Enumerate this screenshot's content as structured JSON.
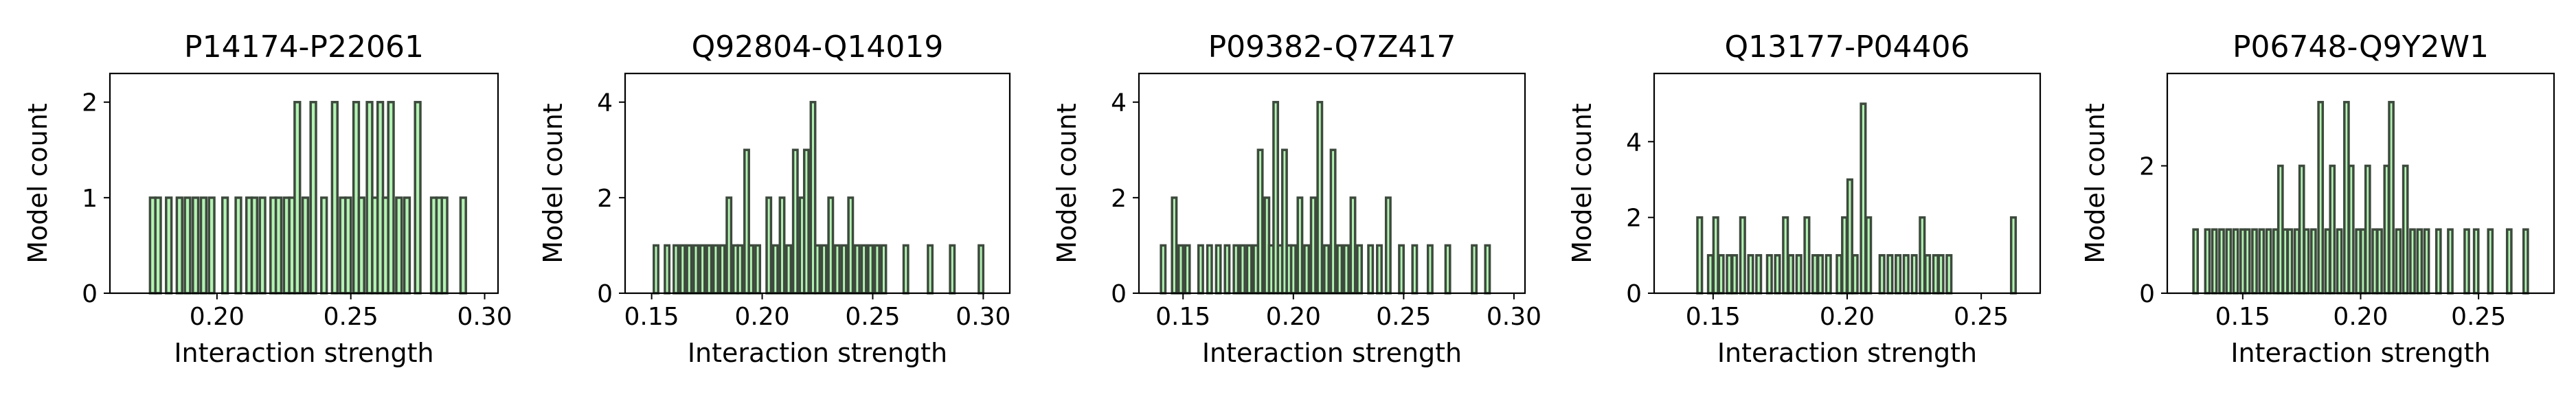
{
  "chart_data": [
    {
      "type": "histogram",
      "title": "P14174-P22061",
      "xlabel": "Interaction strength",
      "ylabel": "Model count",
      "xlim": [
        0.16,
        0.305
      ],
      "ylim": [
        0,
        2.3
      ],
      "xticks": [
        "0.20",
        "0.25",
        "0.30"
      ],
      "xtick_values": [
        0.2,
        0.25,
        0.3
      ],
      "yticks": [
        "0",
        "1",
        "2"
      ],
      "ytick_values": [
        0,
        1,
        2
      ],
      "bar_width": 0.002,
      "bars": [
        {
          "x": 0.176,
          "count": 1
        },
        {
          "x": 0.178,
          "count": 1
        },
        {
          "x": 0.182,
          "count": 1
        },
        {
          "x": 0.186,
          "count": 1
        },
        {
          "x": 0.189,
          "count": 1
        },
        {
          "x": 0.192,
          "count": 1
        },
        {
          "x": 0.195,
          "count": 1
        },
        {
          "x": 0.198,
          "count": 1
        },
        {
          "x": 0.203,
          "count": 1
        },
        {
          "x": 0.208,
          "count": 1
        },
        {
          "x": 0.212,
          "count": 1
        },
        {
          "x": 0.214,
          "count": 1
        },
        {
          "x": 0.217,
          "count": 1
        },
        {
          "x": 0.221,
          "count": 1
        },
        {
          "x": 0.223,
          "count": 1
        },
        {
          "x": 0.226,
          "count": 1
        },
        {
          "x": 0.228,
          "count": 1
        },
        {
          "x": 0.23,
          "count": 2
        },
        {
          "x": 0.233,
          "count": 1
        },
        {
          "x": 0.236,
          "count": 2
        },
        {
          "x": 0.24,
          "count": 1
        },
        {
          "x": 0.244,
          "count": 2
        },
        {
          "x": 0.247,
          "count": 1
        },
        {
          "x": 0.249,
          "count": 1
        },
        {
          "x": 0.252,
          "count": 2
        },
        {
          "x": 0.254,
          "count": 1
        },
        {
          "x": 0.257,
          "count": 2
        },
        {
          "x": 0.259,
          "count": 1
        },
        {
          "x": 0.261,
          "count": 2
        },
        {
          "x": 0.263,
          "count": 1
        },
        {
          "x": 0.265,
          "count": 2
        },
        {
          "x": 0.268,
          "count": 1
        },
        {
          "x": 0.271,
          "count": 1
        },
        {
          "x": 0.275,
          "count": 2
        },
        {
          "x": 0.281,
          "count": 1
        },
        {
          "x": 0.283,
          "count": 1
        },
        {
          "x": 0.285,
          "count": 1
        },
        {
          "x": 0.292,
          "count": 1
        }
      ]
    },
    {
      "type": "histogram",
      "title": "Q92804-Q14019",
      "xlabel": "Interaction strength",
      "ylabel": "Model count",
      "xlim": [
        0.138,
        0.312
      ],
      "ylim": [
        0,
        4.6
      ],
      "xticks": [
        "0.15",
        "0.20",
        "0.25",
        "0.30"
      ],
      "xtick_values": [
        0.15,
        0.2,
        0.25,
        0.3
      ],
      "yticks": [
        "0",
        "2",
        "4"
      ],
      "ytick_values": [
        0,
        2,
        4
      ],
      "bar_width": 0.002,
      "bars": [
        {
          "x": 0.152,
          "count": 1
        },
        {
          "x": 0.157,
          "count": 1
        },
        {
          "x": 0.161,
          "count": 1
        },
        {
          "x": 0.164,
          "count": 1
        },
        {
          "x": 0.167,
          "count": 1
        },
        {
          "x": 0.17,
          "count": 1
        },
        {
          "x": 0.173,
          "count": 1
        },
        {
          "x": 0.176,
          "count": 1
        },
        {
          "x": 0.179,
          "count": 1
        },
        {
          "x": 0.182,
          "count": 1
        },
        {
          "x": 0.185,
          "count": 2
        },
        {
          "x": 0.188,
          "count": 1
        },
        {
          "x": 0.19,
          "count": 1
        },
        {
          "x": 0.193,
          "count": 3
        },
        {
          "x": 0.195,
          "count": 1
        },
        {
          "x": 0.198,
          "count": 1
        },
        {
          "x": 0.203,
          "count": 2
        },
        {
          "x": 0.206,
          "count": 1
        },
        {
          "x": 0.209,
          "count": 2
        },
        {
          "x": 0.212,
          "count": 1
        },
        {
          "x": 0.215,
          "count": 3
        },
        {
          "x": 0.218,
          "count": 2
        },
        {
          "x": 0.22,
          "count": 3
        },
        {
          "x": 0.223,
          "count": 4
        },
        {
          "x": 0.225,
          "count": 1
        },
        {
          "x": 0.228,
          "count": 1
        },
        {
          "x": 0.231,
          "count": 2
        },
        {
          "x": 0.234,
          "count": 1
        },
        {
          "x": 0.237,
          "count": 1
        },
        {
          "x": 0.24,
          "count": 2
        },
        {
          "x": 0.243,
          "count": 1
        },
        {
          "x": 0.246,
          "count": 1
        },
        {
          "x": 0.249,
          "count": 1
        },
        {
          "x": 0.252,
          "count": 1
        },
        {
          "x": 0.255,
          "count": 1
        },
        {
          "x": 0.265,
          "count": 1
        },
        {
          "x": 0.276,
          "count": 1
        },
        {
          "x": 0.286,
          "count": 1
        },
        {
          "x": 0.299,
          "count": 1
        }
      ]
    },
    {
      "type": "histogram",
      "title": "P09382-Q7Z417",
      "xlabel": "Interaction strength",
      "ylabel": "Model count",
      "xlim": [
        0.13,
        0.305
      ],
      "ylim": [
        0,
        4.6
      ],
      "xticks": [
        "0.15",
        "0.20",
        "0.25",
        "0.30"
      ],
      "xtick_values": [
        0.15,
        0.2,
        0.25,
        0.3
      ],
      "yticks": [
        "0",
        "2",
        "4"
      ],
      "ytick_values": [
        0,
        2,
        4
      ],
      "bar_width": 0.002,
      "bars": [
        {
          "x": 0.141,
          "count": 1
        },
        {
          "x": 0.146,
          "count": 2
        },
        {
          "x": 0.149,
          "count": 1
        },
        {
          "x": 0.152,
          "count": 1
        },
        {
          "x": 0.158,
          "count": 1
        },
        {
          "x": 0.162,
          "count": 1
        },
        {
          "x": 0.166,
          "count": 1
        },
        {
          "x": 0.17,
          "count": 1
        },
        {
          "x": 0.174,
          "count": 1
        },
        {
          "x": 0.177,
          "count": 1
        },
        {
          "x": 0.18,
          "count": 1
        },
        {
          "x": 0.183,
          "count": 1
        },
        {
          "x": 0.185,
          "count": 3
        },
        {
          "x": 0.188,
          "count": 2
        },
        {
          "x": 0.19,
          "count": 1
        },
        {
          "x": 0.192,
          "count": 4
        },
        {
          "x": 0.194,
          "count": 1
        },
        {
          "x": 0.196,
          "count": 3
        },
        {
          "x": 0.198,
          "count": 1
        },
        {
          "x": 0.2,
          "count": 1
        },
        {
          "x": 0.203,
          "count": 2
        },
        {
          "x": 0.206,
          "count": 1
        },
        {
          "x": 0.209,
          "count": 2
        },
        {
          "x": 0.212,
          "count": 4
        },
        {
          "x": 0.215,
          "count": 1
        },
        {
          "x": 0.218,
          "count": 3
        },
        {
          "x": 0.221,
          "count": 1
        },
        {
          "x": 0.224,
          "count": 1
        },
        {
          "x": 0.227,
          "count": 2
        },
        {
          "x": 0.23,
          "count": 1
        },
        {
          "x": 0.235,
          "count": 1
        },
        {
          "x": 0.239,
          "count": 1
        },
        {
          "x": 0.243,
          "count": 2
        },
        {
          "x": 0.249,
          "count": 1
        },
        {
          "x": 0.255,
          "count": 1
        },
        {
          "x": 0.262,
          "count": 1
        },
        {
          "x": 0.27,
          "count": 1
        },
        {
          "x": 0.282,
          "count": 1
        },
        {
          "x": 0.288,
          "count": 1
        }
      ]
    },
    {
      "type": "histogram",
      "title": "Q13177-P04406",
      "xlabel": "Interaction strength",
      "ylabel": "Model count",
      "xlim": [
        0.128,
        0.272
      ],
      "ylim": [
        0,
        5.8
      ],
      "xticks": [
        "0.15",
        "0.20",
        "0.25"
      ],
      "xtick_values": [
        0.15,
        0.2,
        0.25
      ],
      "yticks": [
        "0",
        "2",
        "4"
      ],
      "ytick_values": [
        0,
        2,
        4
      ],
      "bar_width": 0.0017,
      "bars": [
        {
          "x": 0.145,
          "count": 2
        },
        {
          "x": 0.149,
          "count": 1
        },
        {
          "x": 0.151,
          "count": 2
        },
        {
          "x": 0.153,
          "count": 1
        },
        {
          "x": 0.156,
          "count": 1
        },
        {
          "x": 0.158,
          "count": 1
        },
        {
          "x": 0.161,
          "count": 2
        },
        {
          "x": 0.164,
          "count": 1
        },
        {
          "x": 0.167,
          "count": 1
        },
        {
          "x": 0.171,
          "count": 1
        },
        {
          "x": 0.174,
          "count": 1
        },
        {
          "x": 0.177,
          "count": 2
        },
        {
          "x": 0.179,
          "count": 1
        },
        {
          "x": 0.182,
          "count": 1
        },
        {
          "x": 0.185,
          "count": 2
        },
        {
          "x": 0.188,
          "count": 1
        },
        {
          "x": 0.19,
          "count": 1
        },
        {
          "x": 0.193,
          "count": 1
        },
        {
          "x": 0.197,
          "count": 1
        },
        {
          "x": 0.199,
          "count": 2
        },
        {
          "x": 0.201,
          "count": 3
        },
        {
          "x": 0.203,
          "count": 1
        },
        {
          "x": 0.206,
          "count": 5
        },
        {
          "x": 0.208,
          "count": 2
        },
        {
          "x": 0.213,
          "count": 1
        },
        {
          "x": 0.216,
          "count": 1
        },
        {
          "x": 0.219,
          "count": 1
        },
        {
          "x": 0.222,
          "count": 1
        },
        {
          "x": 0.225,
          "count": 1
        },
        {
          "x": 0.228,
          "count": 2
        },
        {
          "x": 0.23,
          "count": 1
        },
        {
          "x": 0.233,
          "count": 1
        },
        {
          "x": 0.235,
          "count": 1
        },
        {
          "x": 0.238,
          "count": 1
        },
        {
          "x": 0.262,
          "count": 2
        }
      ]
    },
    {
      "type": "histogram",
      "title": "P06748-Q9Y2W1",
      "xlabel": "Interaction strength",
      "ylabel": "Model count",
      "xlim": [
        0.118,
        0.282
      ],
      "ylim": [
        0,
        3.45
      ],
      "xticks": [
        "0.15",
        "0.20",
        "0.25"
      ],
      "xtick_values": [
        0.15,
        0.2,
        0.25
      ],
      "yticks": [
        "0",
        "2"
      ],
      "ytick_values": [
        0,
        2
      ],
      "bar_width": 0.0018,
      "bars": [
        {
          "x": 0.13,
          "count": 1
        },
        {
          "x": 0.135,
          "count": 1
        },
        {
          "x": 0.138,
          "count": 1
        },
        {
          "x": 0.141,
          "count": 1
        },
        {
          "x": 0.144,
          "count": 1
        },
        {
          "x": 0.147,
          "count": 1
        },
        {
          "x": 0.15,
          "count": 1
        },
        {
          "x": 0.152,
          "count": 1
        },
        {
          "x": 0.155,
          "count": 1
        },
        {
          "x": 0.158,
          "count": 1
        },
        {
          "x": 0.161,
          "count": 1
        },
        {
          "x": 0.164,
          "count": 1
        },
        {
          "x": 0.166,
          "count": 2
        },
        {
          "x": 0.168,
          "count": 1
        },
        {
          "x": 0.17,
          "count": 1
        },
        {
          "x": 0.173,
          "count": 1
        },
        {
          "x": 0.175,
          "count": 2
        },
        {
          "x": 0.177,
          "count": 1
        },
        {
          "x": 0.18,
          "count": 1
        },
        {
          "x": 0.183,
          "count": 3
        },
        {
          "x": 0.186,
          "count": 1
        },
        {
          "x": 0.188,
          "count": 2
        },
        {
          "x": 0.191,
          "count": 1
        },
        {
          "x": 0.194,
          "count": 3
        },
        {
          "x": 0.196,
          "count": 2
        },
        {
          "x": 0.199,
          "count": 1
        },
        {
          "x": 0.201,
          "count": 1
        },
        {
          "x": 0.203,
          "count": 2
        },
        {
          "x": 0.206,
          "count": 1
        },
        {
          "x": 0.208,
          "count": 1
        },
        {
          "x": 0.211,
          "count": 2
        },
        {
          "x": 0.213,
          "count": 3
        },
        {
          "x": 0.216,
          "count": 1
        },
        {
          "x": 0.219,
          "count": 2
        },
        {
          "x": 0.222,
          "count": 1
        },
        {
          "x": 0.225,
          "count": 1
        },
        {
          "x": 0.228,
          "count": 1
        },
        {
          "x": 0.233,
          "count": 1
        },
        {
          "x": 0.238,
          "count": 1
        },
        {
          "x": 0.245,
          "count": 1
        },
        {
          "x": 0.249,
          "count": 1
        },
        {
          "x": 0.255,
          "count": 1
        },
        {
          "x": 0.263,
          "count": 1
        },
        {
          "x": 0.27,
          "count": 1
        }
      ]
    }
  ],
  "style": {
    "bar_fill": "#b3f2b3",
    "bar_edge": "#3d4a3d",
    "axis_color": "#000000"
  }
}
